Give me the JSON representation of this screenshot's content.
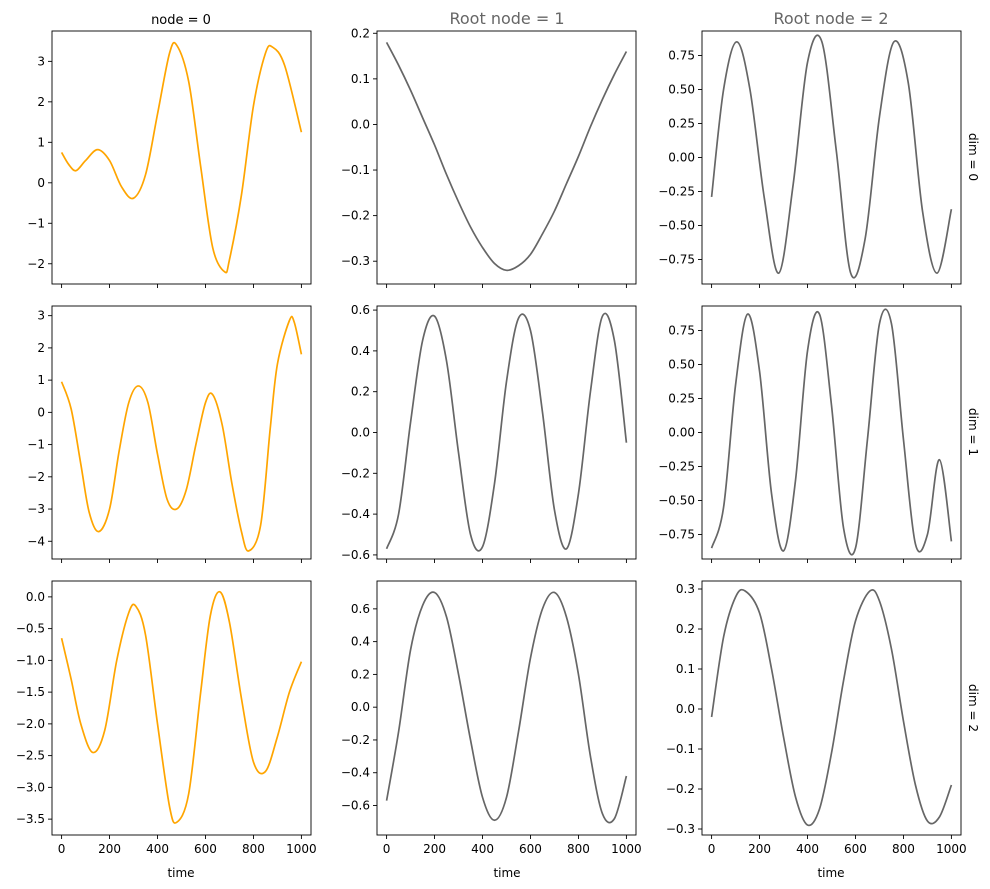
{
  "figure": {
    "column_titles": [
      "node = 0",
      "Root node = 1",
      "Root node = 2"
    ],
    "row_labels": [
      "dim = 0",
      "dim = 1",
      "dim = 2"
    ],
    "xlabel": "time"
  },
  "colors": {
    "node0": "#ffa500",
    "root": "#666666",
    "title_muted": "#666666"
  },
  "chart_data": [
    {
      "type": "line",
      "row": 0,
      "col": 0,
      "color": "node0",
      "x": [
        0,
        30,
        60,
        100,
        150,
        200,
        250,
        300,
        350,
        400,
        450,
        480,
        530,
        580,
        630,
        680,
        700,
        750,
        800,
        850,
        880,
        930,
        1000
      ],
      "values": [
        0.75,
        0.45,
        0.3,
        0.55,
        0.82,
        0.55,
        -0.1,
        -0.38,
        0.2,
        1.7,
        3.2,
        3.4,
        2.5,
        0.4,
        -1.6,
        -2.2,
        -1.9,
        -0.3,
        1.9,
        3.2,
        3.35,
        2.9,
        1.25
      ],
      "xlim": [
        -40,
        1040
      ],
      "ylim": [
        -2.5,
        3.75
      ],
      "xticks": [
        0,
        200,
        400,
        600,
        800,
        1000
      ],
      "yticks": [
        -2,
        -1,
        0,
        1,
        2,
        3
      ]
    },
    {
      "type": "line",
      "row": 0,
      "col": 1,
      "color": "root",
      "x": [
        0,
        50,
        100,
        150,
        200,
        250,
        300,
        350,
        400,
        450,
        500,
        550,
        600,
        650,
        700,
        750,
        800,
        850,
        900,
        950,
        1000
      ],
      "values": [
        0.18,
        0.13,
        0.075,
        0.015,
        -0.045,
        -0.11,
        -0.17,
        -0.225,
        -0.27,
        -0.305,
        -0.32,
        -0.31,
        -0.285,
        -0.24,
        -0.19,
        -0.13,
        -0.07,
        -0.005,
        0.055,
        0.11,
        0.16
      ],
      "xlim": [
        -40,
        1040
      ],
      "ylim": [
        -0.35,
        0.205
      ],
      "xticks": [
        0,
        200,
        400,
        600,
        800,
        1000
      ],
      "yticks": [
        -0.3,
        -0.2,
        -0.1,
        0.0,
        0.1,
        0.2
      ]
    },
    {
      "type": "line",
      "row": 0,
      "col": 2,
      "color": "root",
      "x": [
        0,
        50,
        105,
        160,
        220,
        280,
        340,
        400,
        460,
        520,
        580,
        640,
        700,
        760,
        820,
        880,
        940,
        1000
      ],
      "values": [
        -0.29,
        0.5,
        0.85,
        0.5,
        -0.3,
        -0.85,
        -0.2,
        0.7,
        0.85,
        0.05,
        -0.85,
        -0.6,
        0.3,
        0.85,
        0.55,
        -0.4,
        -0.85,
        -0.38
      ],
      "xlim": [
        -40,
        1040
      ],
      "ylim": [
        -0.93,
        0.93
      ],
      "xticks": [
        0,
        200,
        400,
        600,
        800,
        1000
      ],
      "yticks": [
        -0.75,
        -0.5,
        -0.25,
        0.0,
        0.25,
        0.5,
        0.75
      ]
    },
    {
      "type": "line",
      "row": 1,
      "col": 0,
      "color": "node0",
      "x": [
        0,
        40,
        80,
        115,
        155,
        200,
        240,
        280,
        320,
        360,
        400,
        440,
        480,
        520,
        560,
        600,
        630,
        670,
        710,
        750,
        780,
        830,
        870,
        900,
        950,
        970,
        1000
      ],
      "values": [
        0.95,
        0.1,
        -1.6,
        -3.1,
        -3.7,
        -3.0,
        -1.2,
        0.3,
        0.82,
        0.3,
        -1.3,
        -2.7,
        -3.0,
        -2.4,
        -1.0,
        0.3,
        0.55,
        -0.4,
        -2.2,
        -3.7,
        -4.3,
        -3.5,
        -0.5,
        1.5,
        2.85,
        2.8,
        1.8
      ],
      "xlim": [
        -40,
        1040
      ],
      "ylim": [
        -4.55,
        3.3
      ],
      "xticks": [
        0,
        200,
        400,
        600,
        800,
        1000
      ],
      "yticks": [
        -4,
        -3,
        -2,
        -1,
        0,
        1,
        2,
        3
      ]
    },
    {
      "type": "line",
      "row": 1,
      "col": 1,
      "color": "root",
      "x": [
        0,
        50,
        100,
        150,
        200,
        250,
        300,
        350,
        400,
        450,
        500,
        550,
        600,
        650,
        700,
        750,
        800,
        850,
        900,
        950,
        1000
      ],
      "values": [
        -0.57,
        -0.4,
        0.05,
        0.45,
        0.57,
        0.35,
        -0.1,
        -0.5,
        -0.56,
        -0.25,
        0.25,
        0.56,
        0.5,
        0.1,
        -0.38,
        -0.57,
        -0.3,
        0.2,
        0.57,
        0.45,
        -0.05
      ],
      "xlim": [
        -40,
        1040
      ],
      "ylim": [
        -0.62,
        0.62
      ],
      "xticks": [
        0,
        200,
        400,
        600,
        800,
        1000
      ],
      "yticks": [
        -0.6,
        -0.4,
        -0.2,
        0.0,
        0.2,
        0.4,
        0.6
      ]
    },
    {
      "type": "line",
      "row": 1,
      "col": 2,
      "color": "root",
      "x": [
        0,
        50,
        100,
        150,
        200,
        250,
        300,
        350,
        400,
        450,
        500,
        550,
        600,
        650,
        700,
        750,
        800,
        850,
        900,
        950,
        1000
      ],
      "values": [
        -0.85,
        -0.55,
        0.35,
        0.87,
        0.45,
        -0.45,
        -0.87,
        -0.35,
        0.6,
        0.87,
        0.2,
        -0.7,
        -0.85,
        -0.05,
        0.8,
        0.8,
        -0.05,
        -0.82,
        -0.75,
        -0.2,
        -0.8
      ],
      "xlim": [
        -40,
        1040
      ],
      "ylim": [
        -0.93,
        0.93
      ],
      "xticks": [
        0,
        200,
        400,
        600,
        800,
        1000
      ],
      "yticks": [
        -0.75,
        -0.5,
        -0.25,
        0.0,
        0.25,
        0.5,
        0.75
      ]
    },
    {
      "type": "line",
      "row": 2,
      "col": 0,
      "color": "node0",
      "x": [
        0,
        40,
        80,
        130,
        180,
        230,
        280,
        310,
        350,
        400,
        450,
        480,
        530,
        580,
        620,
        660,
        700,
        750,
        800,
        850,
        900,
        950,
        1000
      ],
      "values": [
        -0.65,
        -1.3,
        -2.0,
        -2.45,
        -2.1,
        -1.0,
        -0.25,
        -0.15,
        -0.6,
        -2.0,
        -3.3,
        -3.55,
        -3.1,
        -1.5,
        -0.3,
        0.08,
        -0.4,
        -1.6,
        -2.6,
        -2.75,
        -2.2,
        -1.5,
        -1.02
      ],
      "xlim": [
        -40,
        1040
      ],
      "ylim": [
        -3.75,
        0.25
      ],
      "xticks": [
        0,
        200,
        400,
        600,
        800,
        1000
      ],
      "yticks": [
        -3.5,
        -3.0,
        -2.5,
        -2.0,
        -1.5,
        -1.0,
        -0.5,
        0.0
      ]
    },
    {
      "type": "line",
      "row": 2,
      "col": 1,
      "color": "root",
      "x": [
        0,
        50,
        100,
        150,
        200,
        250,
        300,
        350,
        400,
        450,
        500,
        550,
        600,
        650,
        700,
        750,
        800,
        850,
        900,
        950,
        1000
      ],
      "values": [
        -0.57,
        -0.15,
        0.35,
        0.62,
        0.7,
        0.55,
        0.2,
        -0.2,
        -0.55,
        -0.69,
        -0.55,
        -0.15,
        0.3,
        0.6,
        0.7,
        0.55,
        0.2,
        -0.3,
        -0.65,
        -0.68,
        -0.42
      ],
      "xlim": [
        -40,
        1040
      ],
      "ylim": [
        -0.78,
        0.77
      ],
      "xticks": [
        0,
        200,
        400,
        600,
        800,
        1000
      ],
      "yticks": [
        -0.6,
        -0.4,
        -0.2,
        0.0,
        0.2,
        0.4,
        0.6
      ]
    },
    {
      "type": "line",
      "row": 2,
      "col": 2,
      "color": "root",
      "x": [
        0,
        50,
        100,
        140,
        200,
        250,
        300,
        350,
        400,
        450,
        500,
        550,
        600,
        660,
        700,
        750,
        800,
        850,
        900,
        950,
        1000
      ],
      "values": [
        -0.02,
        0.18,
        0.28,
        0.295,
        0.24,
        0.1,
        -0.07,
        -0.22,
        -0.29,
        -0.25,
        -0.11,
        0.07,
        0.22,
        0.295,
        0.27,
        0.15,
        -0.03,
        -0.19,
        -0.28,
        -0.27,
        -0.19
      ],
      "xlim": [
        -40,
        1040
      ],
      "ylim": [
        -0.315,
        0.32
      ],
      "xticks": [
        0,
        200,
        400,
        600,
        800,
        1000
      ],
      "yticks": [
        -0.3,
        -0.2,
        -0.1,
        0.0,
        0.1,
        0.2,
        0.3
      ]
    }
  ]
}
